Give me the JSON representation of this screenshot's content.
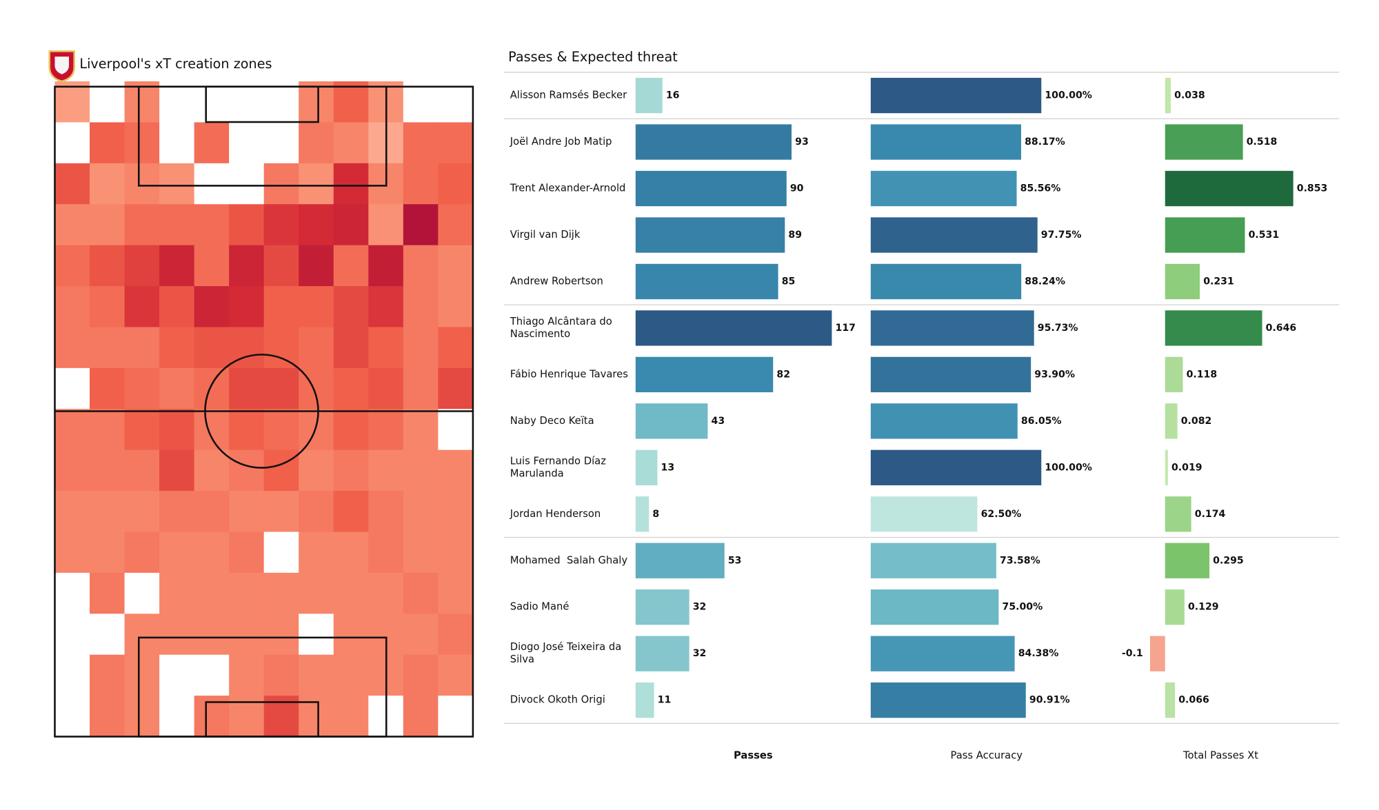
{
  "chart_data": [
    {
      "type": "heatmap",
      "title": "Liverpool's xT creation zones",
      "colors": [
        "#fdd5c4",
        "#fb9d80",
        "#f1604a",
        "#d42a36",
        "#a80f38"
      ],
      "values": [
        [
          0.25,
          0,
          0.35,
          0,
          0,
          0,
          0,
          0.35,
          0.5,
          0.3,
          0,
          0
        ],
        [
          0,
          0.5,
          0.45,
          0,
          0.45,
          0,
          0,
          0.4,
          0.35,
          0.2,
          0.45,
          0.45
        ],
        [
          0.55,
          0.3,
          0.35,
          0.3,
          0,
          0,
          0.4,
          0.3,
          0.75,
          0.35,
          0.45,
          0.5
        ],
        [
          0.35,
          0.35,
          0.45,
          0.45,
          0.45,
          0.55,
          0.7,
          0.75,
          0.8,
          0.3,
          0.95,
          0.45
        ],
        [
          0.45,
          0.55,
          0.65,
          0.8,
          0.45,
          0.8,
          0.6,
          0.85,
          0.45,
          0.85,
          0.4,
          0.35
        ],
        [
          0.4,
          0.45,
          0.7,
          0.55,
          0.8,
          0.75,
          0.5,
          0.5,
          0.6,
          0.7,
          0.4,
          0.35
        ],
        [
          0.4,
          0.4,
          0.4,
          0.5,
          0.55,
          0.55,
          0.5,
          0.45,
          0.6,
          0.5,
          0.4,
          0.5
        ],
        [
          0,
          0.5,
          0.45,
          0.4,
          0.45,
          0.6,
          0.6,
          0.45,
          0.5,
          0.55,
          0.4,
          0.6
        ],
        [
          0.4,
          0.4,
          0.5,
          0.55,
          0.4,
          0.5,
          0.45,
          0.4,
          0.5,
          0.45,
          0.35,
          0
        ],
        [
          0.4,
          0.4,
          0.4,
          0.6,
          0.35,
          0.4,
          0.5,
          0.35,
          0.4,
          0.35,
          0.35,
          0.35
        ],
        [
          0.35,
          0.35,
          0.35,
          0.4,
          0.4,
          0.35,
          0.35,
          0.4,
          0.5,
          0.4,
          0.35,
          0.35
        ],
        [
          0.35,
          0.35,
          0.4,
          0.35,
          0.35,
          0.4,
          0,
          0.35,
          0.35,
          0.4,
          0.35,
          0.35
        ],
        [
          0,
          0.4,
          0,
          0.35,
          0.35,
          0.35,
          0.35,
          0.35,
          0.35,
          0.35,
          0.4,
          0.35
        ],
        [
          0,
          0,
          0.35,
          0.35,
          0.35,
          0.35,
          0.35,
          0,
          0.35,
          0.35,
          0.35,
          0.4
        ],
        [
          0,
          0.4,
          0.35,
          0,
          0,
          0.35,
          0.4,
          0.35,
          0.35,
          0.35,
          0.4,
          0.35
        ],
        [
          0,
          0.4,
          0.35,
          0,
          0.4,
          0.35,
          0.6,
          0.35,
          0.35,
          0,
          0.4,
          0
        ]
      ]
    },
    {
      "type": "bar-table",
      "title": "Passes & Expected threat",
      "categories": [
        [
          "Alisson Ramsés Becker"
        ],
        [
          "Joël Andre Job Matip"
        ],
        [
          "Trent Alexander-Arnold"
        ],
        [
          "Virgil van Dijk"
        ],
        [
          "Andrew Robertson"
        ],
        [
          "Thiago Alcântara do",
          "Nascimento"
        ],
        [
          "Fábio Henrique Tavares"
        ],
        [
          "Naby Deco Keïta"
        ],
        [
          "Luis Fernando Díaz",
          "Marulanda"
        ],
        [
          "Jordan Henderson"
        ],
        [
          "Mohamed  Salah Ghaly"
        ],
        [
          "Sadio Mané"
        ],
        [
          "Diogo José Teixeira da",
          "Silva"
        ],
        [
          "Divock Okoth Origi"
        ]
      ],
      "series": [
        {
          "name": "Passes",
          "values": [
            16,
            93,
            90,
            89,
            85,
            117,
            82,
            43,
            13,
            8,
            53,
            32,
            32,
            11
          ],
          "xlim": [
            0,
            117
          ],
          "colors": [
            "#b4e2da",
            "#6cb8c5",
            "#3a8cb0",
            "#2c5985"
          ]
        },
        {
          "name": "Pass Accuracy",
          "values": [
            100,
            88.17,
            85.56,
            97.75,
            88.24,
            95.73,
            93.9,
            86.05,
            100,
            62.5,
            73.58,
            75,
            84.38,
            90.91
          ],
          "value_labels": [
            "100.00%",
            "88.17%",
            "85.56%",
            "97.75%",
            "88.24%",
            "95.73%",
            "93.90%",
            "86.05%",
            "100.00%",
            "62.50%",
            "73.58%",
            "75.00%",
            "84.38%",
            "90.91%"
          ],
          "xlim": [
            0,
            100
          ],
          "colors": [
            "#bfe6de",
            "#6cb8c5",
            "#3a8cb0",
            "#2c5985"
          ]
        },
        {
          "name": "Total Passes Xt",
          "values": [
            0.038,
            0.518,
            0.853,
            0.531,
            0.231,
            0.646,
            0.118,
            0.082,
            0.019,
            0.174,
            0.295,
            0.129,
            -0.1,
            0.066
          ],
          "xlim": [
            0,
            0.853
          ],
          "colors": [
            "#c6e8b0",
            "#7bc46a",
            "#3c9650",
            "#1f6a3c"
          ],
          "negative_color": "#f6a48e"
        }
      ]
    }
  ]
}
